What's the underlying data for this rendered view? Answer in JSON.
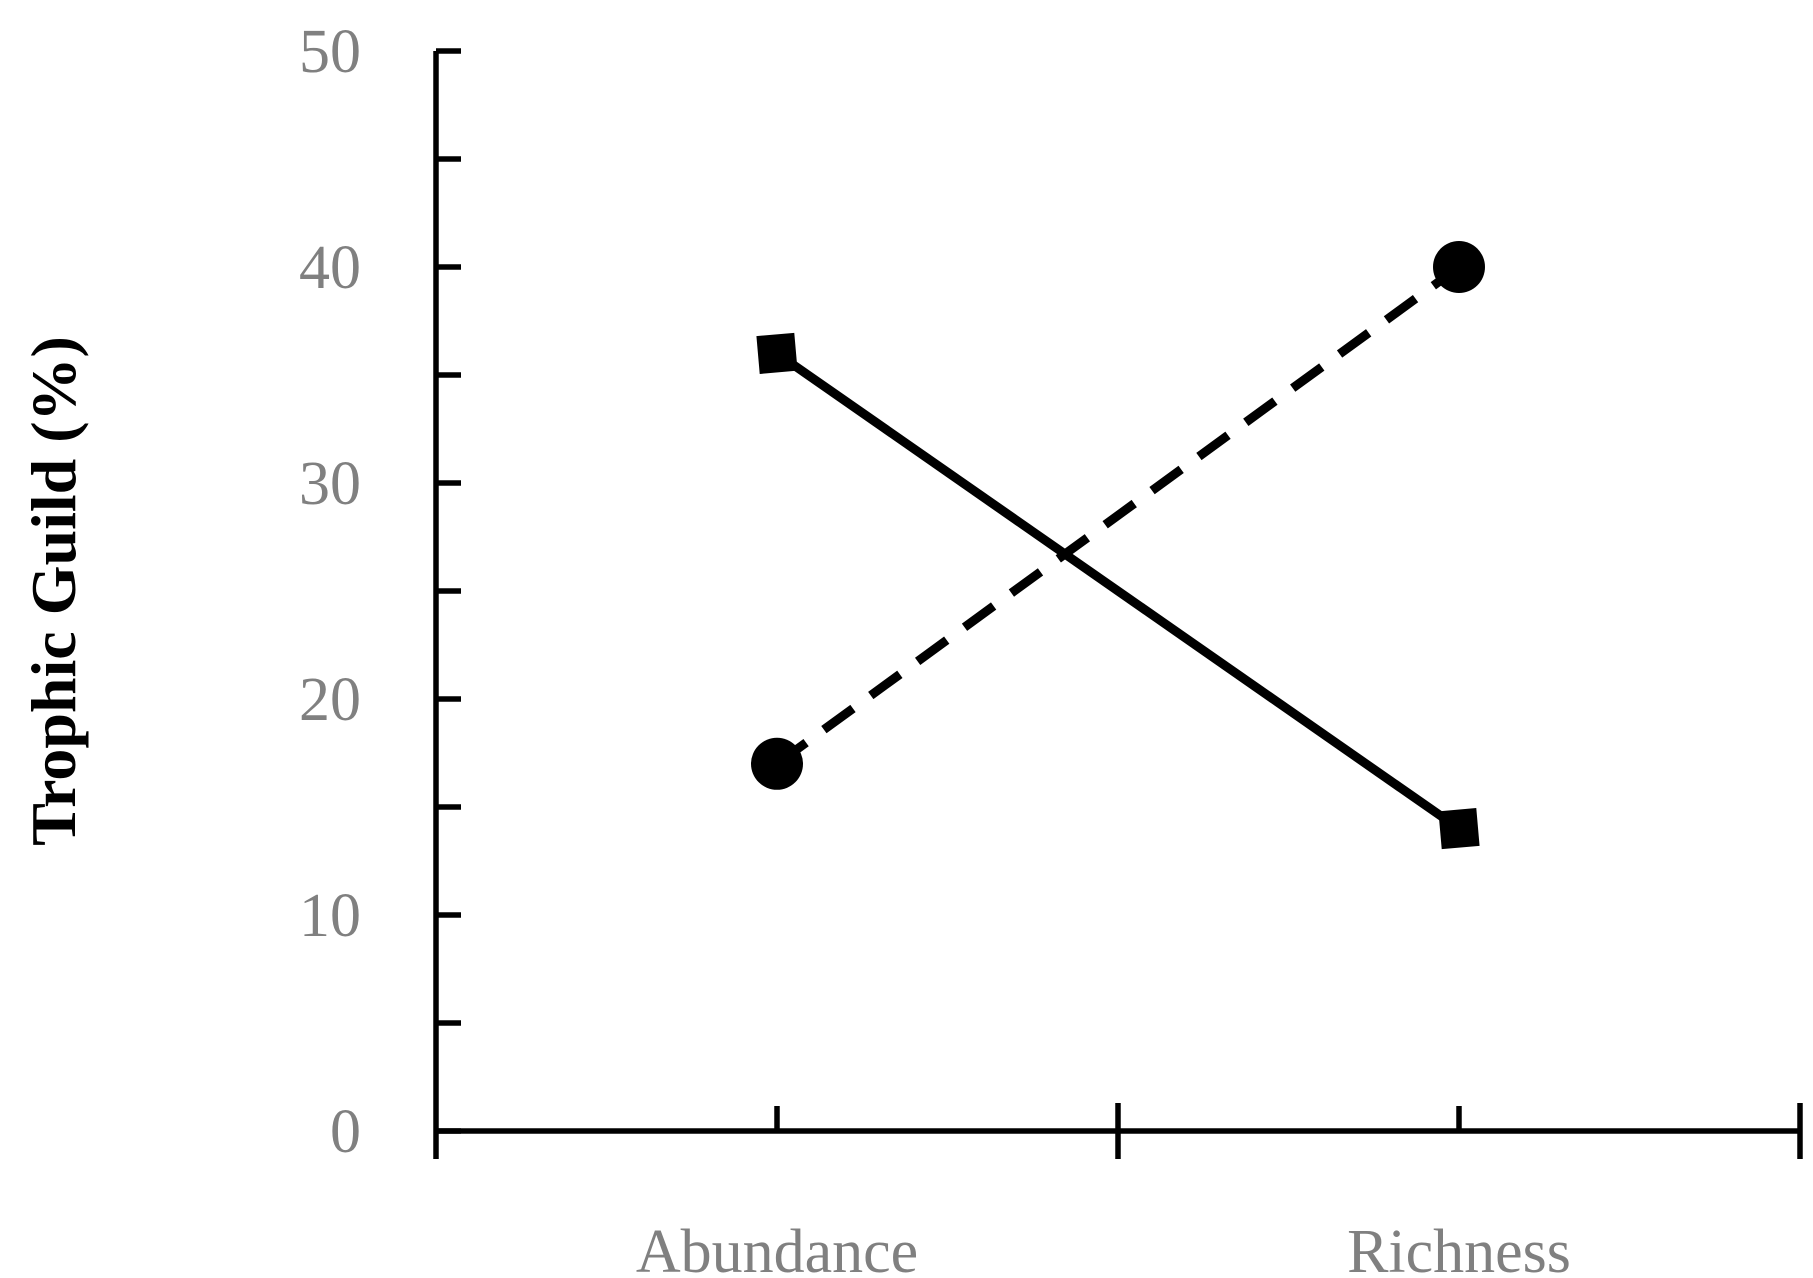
{
  "chart_data": {
    "type": "line",
    "title": "",
    "xlabel": "",
    "ylabel": "Trophic Guild (%)",
    "categories": [
      "Abundance",
      "Richness"
    ],
    "ylim": [
      0,
      50
    ],
    "y_major_ticks": [
      0,
      10,
      20,
      30,
      40,
      50
    ],
    "y_minor_ticks": [
      5,
      15,
      25,
      35,
      45
    ],
    "grid": false,
    "legend": "none",
    "series": [
      {
        "marker": "square",
        "line_style": "solid",
        "color": "#000000",
        "values": [
          36,
          14
        ]
      },
      {
        "marker": "circle",
        "line_style": "dashed",
        "color": "#000000",
        "values": [
          17,
          40
        ]
      }
    ],
    "colors": {
      "axis": "#000000",
      "tick_label": "#808080",
      "axis_title": "#000000"
    }
  }
}
